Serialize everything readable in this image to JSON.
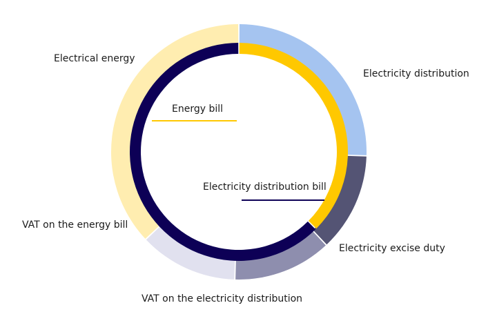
{
  "chart_data": {
    "type": "pie",
    "title": "",
    "rings": [
      {
        "name": "inner",
        "segments": [
          {
            "label": "Energy bill",
            "value": 37.5,
            "color": "#FFC800"
          },
          {
            "label": "Electricity distribution bill",
            "value": 62.5,
            "color": "#0D0056"
          }
        ]
      },
      {
        "name": "outer",
        "segments": [
          {
            "label": "Electricity distribution",
            "value": 25.5,
            "color": "#A5C4F0"
          },
          {
            "label": "Electricity excise duty",
            "value": 12.5,
            "color": "#545474"
          },
          {
            "label": "VAT on the electricity distribution",
            "value": 12.5,
            "color": "#8E8EAE"
          },
          {
            "label": "VAT on the energy bill",
            "value": 12.5,
            "color": "#E1E1EF"
          },
          {
            "label": "Electrical energy",
            "value": 37.0,
            "color": "#FFEDB0"
          }
        ]
      }
    ],
    "legend": "none"
  }
}
